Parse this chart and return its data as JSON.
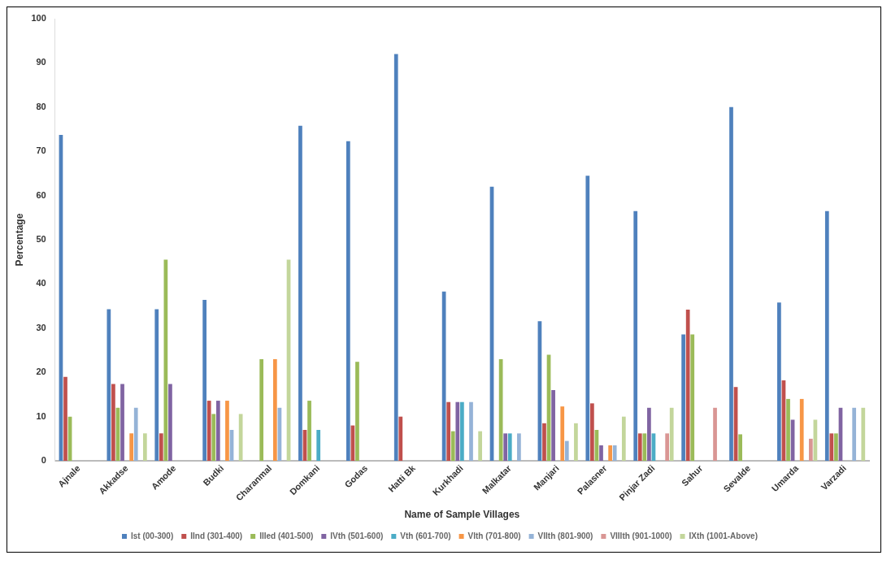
{
  "chart_data": {
    "type": "bar",
    "xlabel": "Name of Sample Villages",
    "ylabel": "Percentage",
    "categories": [
      "Ajnale",
      "Akkadse",
      "Amode",
      "Budki",
      "Charanmal",
      "Domkani",
      "Godas",
      "Hatti Bk",
      "Kurkhadi",
      "Malkatar",
      "Manjari",
      "Palasner",
      "Pinjar Zadi",
      "Sahur",
      "Sevalde",
      "Umarda",
      "Varzadi"
    ],
    "series": [
      {
        "name": "Ist (00-300)",
        "color": "#4f81bd",
        "values": [
          73.7,
          34.3,
          34.3,
          36.4,
          0,
          75.8,
          72.3,
          92,
          38.3,
          62,
          31.6,
          64.5,
          56.5,
          28.6,
          80,
          35.8,
          56.5
        ]
      },
      {
        "name": "IInd (301-400)",
        "color": "#c0504d",
        "values": [
          19,
          17.4,
          6.2,
          13.6,
          0,
          7,
          8,
          10,
          13.3,
          0,
          8.5,
          13,
          6.2,
          34.2,
          16.7,
          18.2,
          6.2
        ]
      },
      {
        "name": "IIIed (401-500)",
        "color": "#9bbb59",
        "values": [
          10,
          12,
          45.5,
          10.6,
          23,
          13.6,
          22.4,
          0,
          6.7,
          23,
          24,
          7,
          6.2,
          28.6,
          6,
          14,
          6.2
        ]
      },
      {
        "name": "IVth (501-600)",
        "color": "#8064a2",
        "values": [
          0,
          17.4,
          17.4,
          13.6,
          0,
          0,
          0,
          0,
          13.3,
          6.2,
          16,
          3.5,
          12,
          0,
          0,
          9.3,
          12
        ]
      },
      {
        "name": "Vth (601-700)",
        "color": "#4bacc6",
        "values": [
          0,
          0,
          0,
          0,
          0,
          7,
          0,
          0,
          13.3,
          6.2,
          0,
          0,
          6.2,
          0,
          0,
          0,
          0
        ]
      },
      {
        "name": "VIth (701-800)",
        "color": "#f79646",
        "values": [
          0,
          6.2,
          0,
          13.6,
          23,
          0,
          0,
          0,
          0,
          0,
          12.3,
          3.5,
          0,
          0,
          0,
          14,
          0
        ]
      },
      {
        "name": "VIIth (801-900)",
        "color": "#95b3d7",
        "values": [
          0,
          12,
          0,
          7,
          12,
          0,
          0,
          0,
          13.3,
          6.2,
          4.5,
          3.5,
          0,
          0,
          0,
          0,
          12
        ]
      },
      {
        "name": "VIIIth (901-1000)",
        "color": "#d99694",
        "values": [
          0,
          0,
          0,
          0,
          0,
          0,
          0,
          0,
          0,
          0,
          0,
          0,
          6.2,
          12,
          0,
          5,
          0
        ]
      },
      {
        "name": "IXth (1001-Above)",
        "color": "#c3d69b",
        "values": [
          0,
          6.2,
          0,
          10.6,
          45.5,
          0,
          0,
          0,
          6.7,
          0,
          8.5,
          10,
          12,
          0,
          0,
          9.3,
          12
        ]
      }
    ],
    "ylim": [
      0,
      100
    ],
    "yticks": [
      0,
      10,
      20,
      30,
      40,
      50,
      60,
      70,
      80,
      90,
      100
    ],
    "grid": false,
    "legend": "bottom"
  }
}
